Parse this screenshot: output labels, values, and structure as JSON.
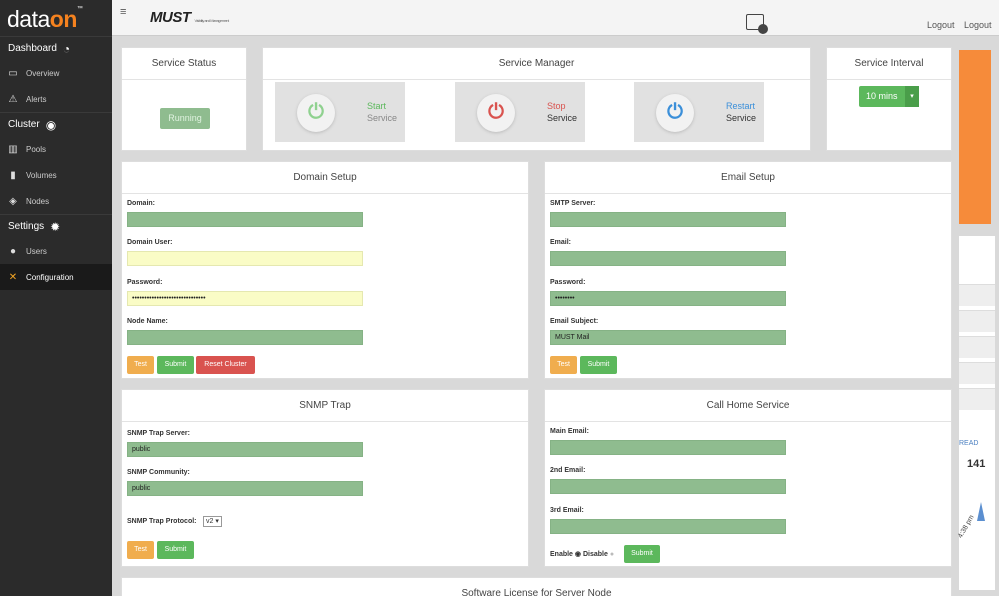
{
  "sidebar": {
    "logo_main": "data",
    "logo_on": "on",
    "logo_tm": "™",
    "sections": {
      "dashboard": "Dashboard",
      "cluster": "Cluster",
      "settings": "Settings"
    },
    "items": {
      "overview": "Overview",
      "alerts": "Alerts",
      "pools": "Pools",
      "volumes": "Volumes",
      "nodes": "Nodes",
      "users": "Users",
      "configuration": "Configuration"
    }
  },
  "topbar": {
    "brand": "MUST",
    "brand_tag": "Visibility and Management",
    "logout1": "Logout",
    "logout2": "Logout"
  },
  "service_status": {
    "title": "Service Status",
    "status": "Running"
  },
  "service_manager": {
    "title": "Service Manager",
    "start": [
      "Start",
      "Service"
    ],
    "stop": [
      "Stop",
      "Service"
    ],
    "restart": [
      "Restart",
      "Service"
    ]
  },
  "service_interval": {
    "title": "Service Interval",
    "value": "10 mins"
  },
  "domain_setup": {
    "title": "Domain Setup",
    "domain_label": "Domain:",
    "domain_value": "",
    "user_label": "Domain User:",
    "user_value": "",
    "password_label": "Password:",
    "password_value": "••••••••••••••••••••••••••••••",
    "node_label": "Node Name:",
    "node_value": "",
    "test": "Test",
    "submit": "Submit",
    "reset": "Reset Cluster"
  },
  "email_setup": {
    "title": "Email Setup",
    "smtp_label": "SMTP Server:",
    "smtp_value": "",
    "email_label": "Email:",
    "email_value": "",
    "password_label": "Password:",
    "password_value": "••••••••",
    "subject_label": "Email Subject:",
    "subject_value": "MUST Mail",
    "test": "Test",
    "submit": "Submit"
  },
  "snmp": {
    "title": "SNMP Trap",
    "server_label": "SNMP Trap Server:",
    "server_value": "public",
    "community_label": "SNMP Community:",
    "community_value": "public",
    "protocol_label": "SNMP Trap Protocol:",
    "protocol_value": "v2 ▾",
    "test": "Test",
    "submit": "Submit"
  },
  "callhome": {
    "title": "Call Home Service",
    "main_label": "Main Email:",
    "second_label": "2nd Email:",
    "third_label": "3rd Email:",
    "enable": "Enable",
    "disable": "Disable",
    "submit": "Submit"
  },
  "license": {
    "title": "Software License for Server Node"
  },
  "right": {
    "read": "READ",
    "count": "141",
    "time": "4:38 pm"
  }
}
